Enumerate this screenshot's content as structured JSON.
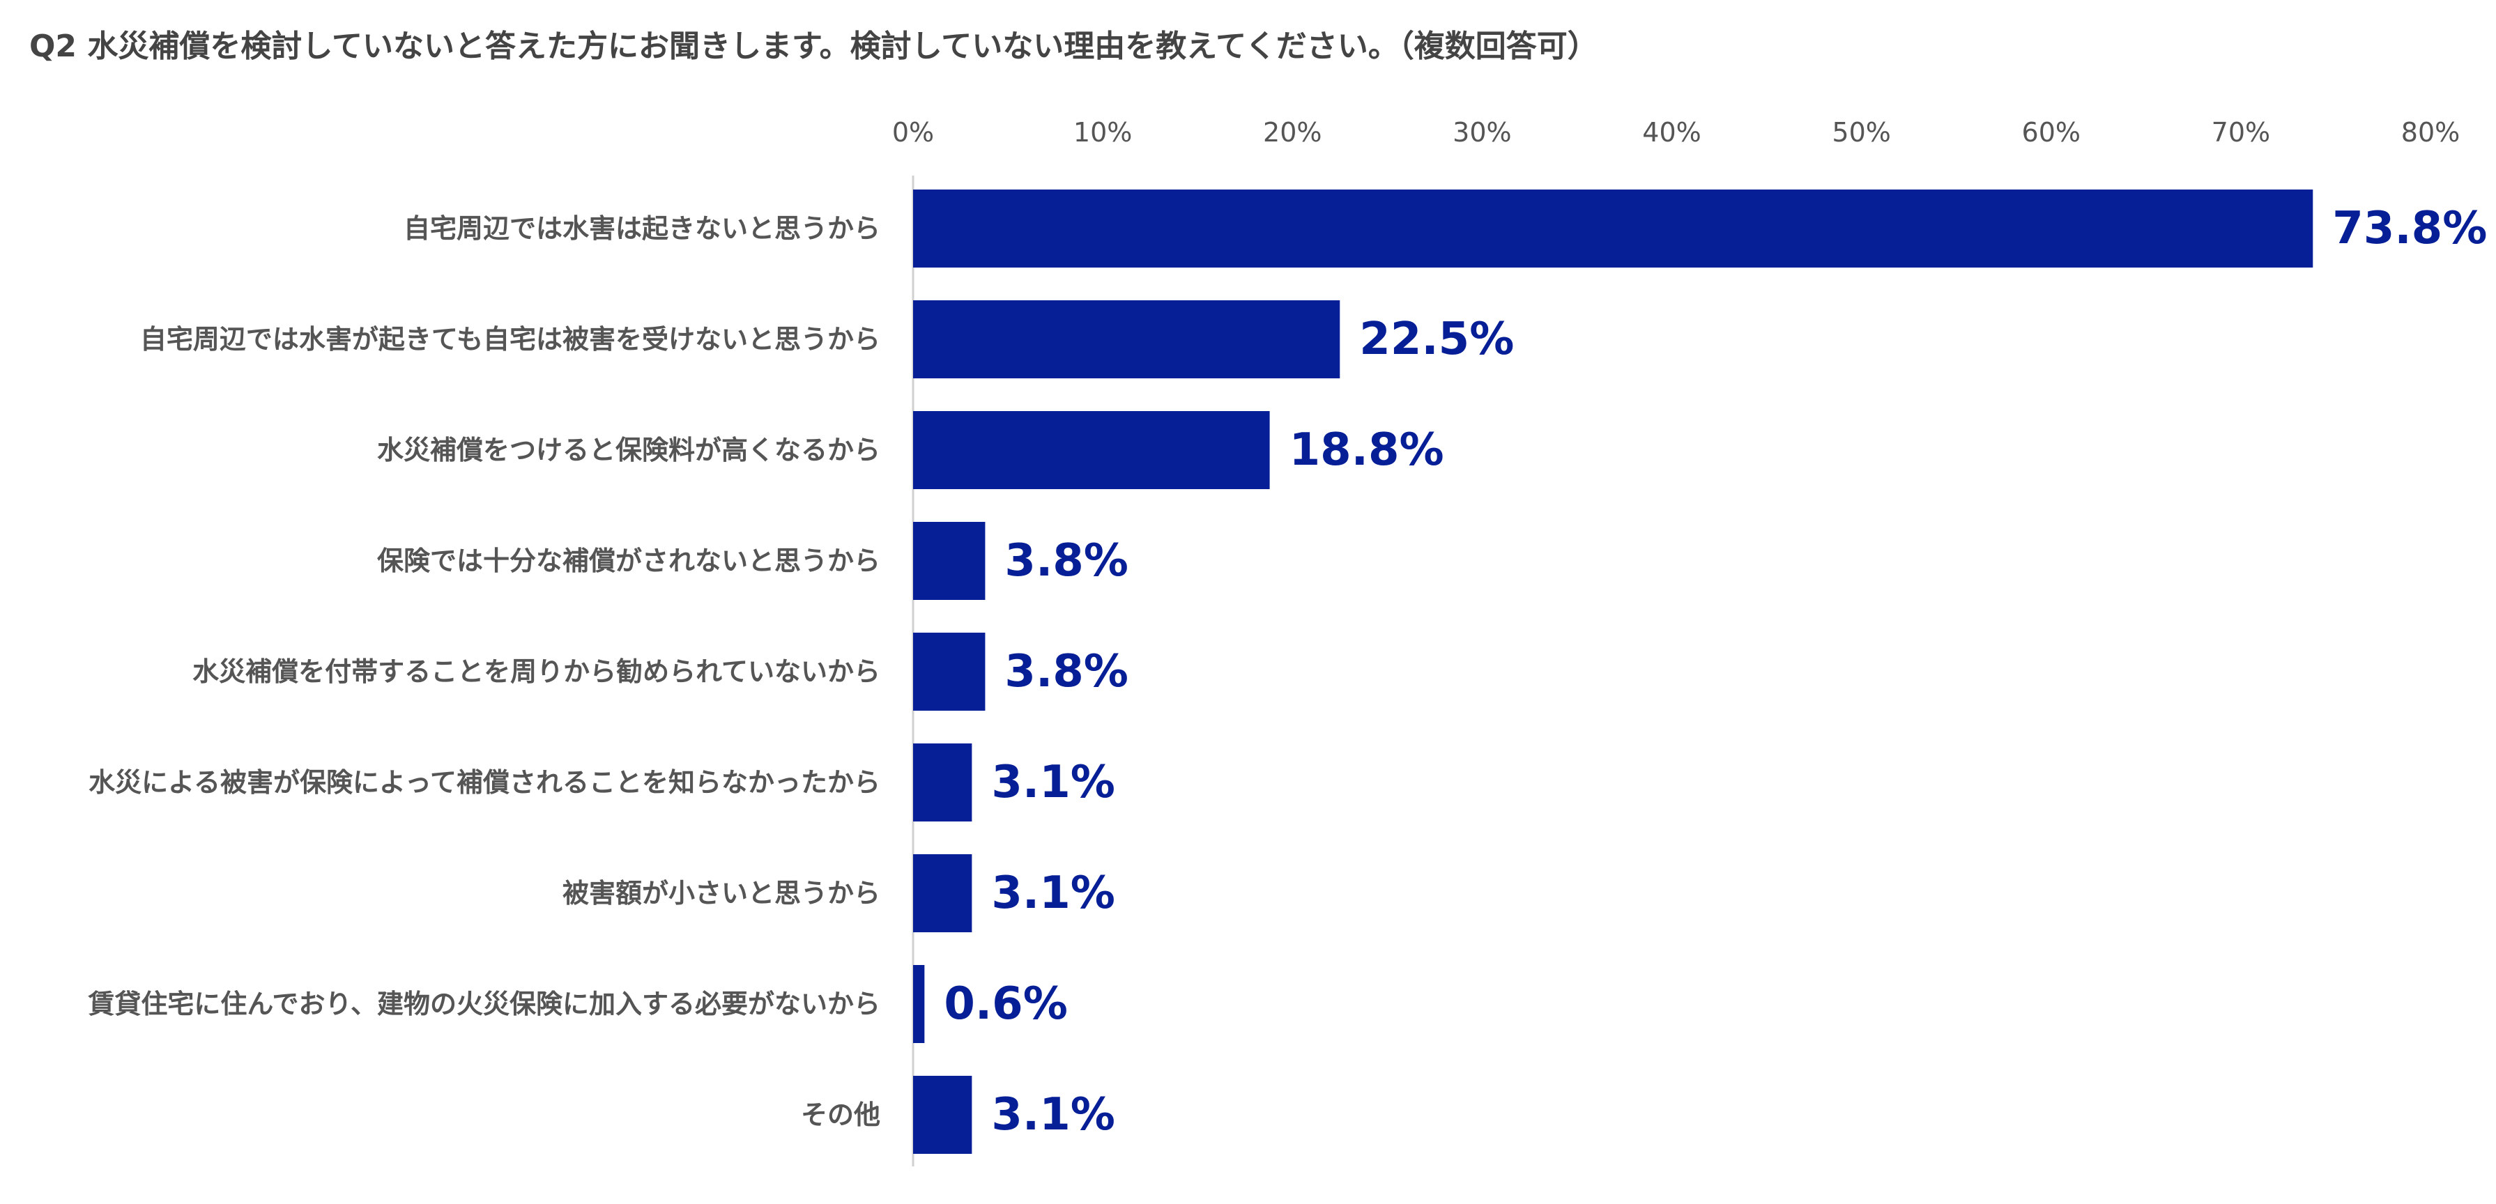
{
  "chart_data": {
    "type": "bar",
    "orientation": "horizontal",
    "title": "Q2 水災補償を検討していないと答えた方にお聞きします。検討していない理由を教えてください。（複数回答可）",
    "categories": [
      "自宅周辺では水害は起きないと思うから",
      "自宅周辺では水害が起きても自宅は被害を受けないと思うから",
      "水災補償をつけると保険料が高くなるから",
      "保険では十分な補償がされないと思うから",
      "水災補償を付帯することを周りから勧められていないから",
      "水災による被害が保険によって補償されることを知らなかったから",
      "被害額が小さいと思うから",
      "賃貸住宅に住んでおり、建物の火災保険に加入する必要がないから",
      "その他"
    ],
    "values": [
      73.8,
      22.5,
      18.8,
      3.8,
      3.8,
      3.1,
      3.1,
      0.6,
      3.1
    ],
    "value_labels": [
      "73.8%",
      "22.5%",
      "18.8%",
      "3.8%",
      "3.8%",
      "3.1%",
      "3.1%",
      "0.6%",
      "3.1%"
    ],
    "xlim": [
      0,
      80
    ],
    "ticks": [
      0,
      10,
      20,
      30,
      40,
      50,
      60,
      70,
      80
    ],
    "tick_labels": [
      "0%",
      "10%",
      "20%",
      "30%",
      "40%",
      "50%",
      "60%",
      "70%",
      "80%"
    ],
    "axis_position": "top",
    "grid": false,
    "legend": "none",
    "bar_color": "#061E96",
    "label_color": "#061E96"
  }
}
